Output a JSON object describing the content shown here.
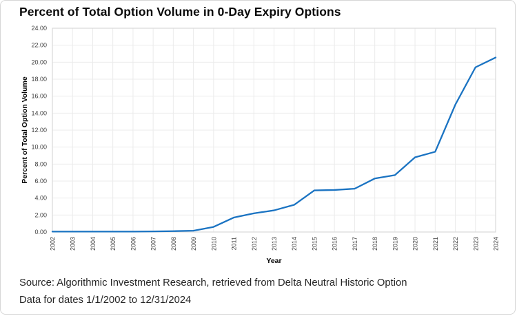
{
  "page": {
    "title": "Percent of Total Option Volume in 0-Day Expiry Options"
  },
  "source": {
    "line1": "Source: Algorithmic Investment Research, retrieved from Delta Neutral Historic Option",
    "line2": "Data for dates 1/1/2002 to 12/31/2024"
  },
  "chart_data": {
    "type": "line",
    "title": "Percent of Total Option Volume in 0-Day Expiry Options",
    "xlabel": "Year",
    "ylabel": "Percent of Total Option Volume",
    "x": [
      2002,
      2003,
      2004,
      2005,
      2006,
      2007,
      2008,
      2009,
      2010,
      2011,
      2012,
      2013,
      2014,
      2015,
      2016,
      2017,
      2018,
      2019,
      2020,
      2021,
      2022,
      2023,
      2024
    ],
    "values": [
      0.05,
      0.05,
      0.05,
      0.05,
      0.05,
      0.07,
      0.1,
      0.15,
      0.6,
      1.7,
      2.2,
      2.55,
      3.2,
      4.9,
      4.95,
      5.1,
      6.3,
      6.7,
      8.8,
      9.45,
      15.0,
      19.4,
      20.55
    ],
    "ylim": [
      0,
      24
    ],
    "ytick_step": 2,
    "grid": true,
    "legend": "none",
    "colors": {
      "line": "#1a73c2",
      "gridline": "#ebebeb",
      "plot_border": "#d9d9d9",
      "tick_text": "#3c3c3c",
      "axis_title_text": "#000000"
    }
  }
}
